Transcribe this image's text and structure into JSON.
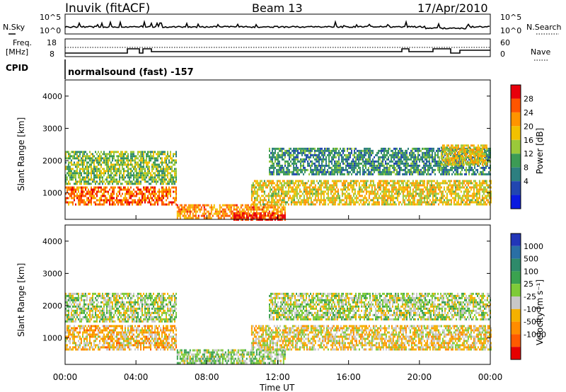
{
  "header": {
    "station": "Inuvik (fitACF)",
    "beam": "Beam 13",
    "date": "17/Apr/2010"
  },
  "strip_labels": {
    "nsky": "N.Sky",
    "freq_line1": "Freq.",
    "freq_line2": "[MHz]",
    "cpid": "CPID",
    "nsearch": "N.Search",
    "nave": "Nave",
    "left_ticks_nsky": [
      "10^5",
      "10^0"
    ],
    "left_ticks_freq": [
      "18",
      "8"
    ],
    "right_ticks_nsearch": [
      "10^5",
      "10^0"
    ],
    "right_ticks_nave": [
      "60",
      "0"
    ],
    "program": "normalsound (fast) -157"
  },
  "axes": {
    "ylabel": "Slant Range [km]",
    "xlabel": "Time UT",
    "y_ticks": [
      "1000",
      "2000",
      "3000",
      "4000"
    ],
    "x_ticks": [
      "00:00",
      "04:00",
      "08:00",
      "12:00",
      "16:00",
      "20:00",
      "00:00"
    ]
  },
  "power_bar": {
    "label": "Power [dB]",
    "ticks": [
      "28",
      "24",
      "20",
      "16",
      "12",
      "8",
      "4"
    ],
    "colors": [
      "#e8000b",
      "#ff5500",
      "#ff9400",
      "#f2c100",
      "#9ac93a",
      "#3c9b55",
      "#2d7f80",
      "#2146b0",
      "#0a1ae0"
    ]
  },
  "velocity_bar": {
    "label": "Velocity [m s⁻¹]",
    "ticks": [
      "1000",
      "500",
      "100",
      "25",
      "-25",
      "-100",
      "-500",
      "-1000"
    ],
    "colors": [
      "#2236b8",
      "#2a6fa5",
      "#2e8a6a",
      "#3aa24f",
      "#7ecb38",
      "#c8c8c8",
      "#f5b100",
      "#ff8c00",
      "#ff5a00",
      "#e50000"
    ]
  },
  "chart_data": [
    {
      "type": "heatmap",
      "panel": "power",
      "x_unit": "hours UT",
      "xlim": [
        0,
        24
      ],
      "ylim": [
        180,
        4500
      ],
      "colorscale_range": [
        0,
        30
      ],
      "bands": [
        {
          "t_start": 0,
          "t_end": 6.3,
          "r_low": 650,
          "r_high": 1200,
          "value": 24
        },
        {
          "t_start": 0,
          "t_end": 6.3,
          "r_low": 1250,
          "r_high": 2300,
          "value": 14
        },
        {
          "t_start": 6.3,
          "t_end": 12.4,
          "r_low": 200,
          "r_high": 650,
          "value": 22
        },
        {
          "t_start": 9.5,
          "t_end": 12.4,
          "r_low": 180,
          "r_high": 400,
          "value": 28
        },
        {
          "t_start": 10.5,
          "t_end": 24,
          "r_low": 650,
          "r_high": 1400,
          "value": 18
        },
        {
          "t_start": 11.5,
          "t_end": 24,
          "r_low": 1600,
          "r_high": 2400,
          "value": 10
        },
        {
          "t_start": 21.2,
          "t_end": 23.8,
          "r_low": 1900,
          "r_high": 2500,
          "value": 18
        }
      ]
    },
    {
      "type": "heatmap",
      "panel": "velocity",
      "x_unit": "hours UT",
      "xlim": [
        0,
        24
      ],
      "ylim": [
        180,
        4500
      ],
      "colorscale_range": [
        -1000,
        1000
      ],
      "bands": [
        {
          "t_start": 0,
          "t_end": 6.3,
          "r_low": 650,
          "r_high": 1400,
          "value": -300
        },
        {
          "t_start": 0,
          "t_end": 6.3,
          "r_low": 1500,
          "r_high": 2400,
          "value": 0
        },
        {
          "t_start": 6.3,
          "t_end": 12.4,
          "r_low": 200,
          "r_high": 650,
          "value": 60
        },
        {
          "t_start": 10.5,
          "t_end": 24,
          "r_low": 650,
          "r_high": 1400,
          "value": -200
        },
        {
          "t_start": 11.5,
          "t_end": 24,
          "r_low": 1600,
          "r_high": 2400,
          "value": 0
        }
      ]
    }
  ]
}
